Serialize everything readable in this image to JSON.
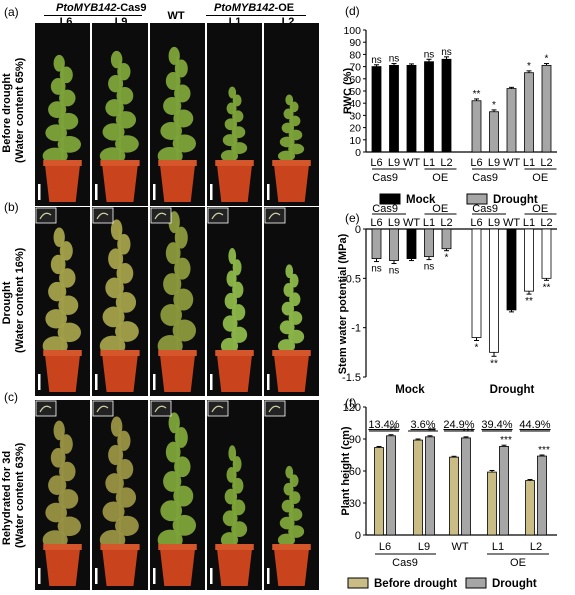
{
  "left": {
    "panel_letters": [
      "(a)",
      "(b)",
      "(c)"
    ],
    "header": {
      "cas9_gene": "PtoMYB142",
      "cas9_suffix": "-Cas9",
      "oe_gene": "PtoMYB142",
      "oe_suffix": "-OE",
      "wt": "WT"
    },
    "columns": [
      "L6",
      "L9",
      "WT",
      "L1",
      "L2"
    ],
    "rows": [
      {
        "line1": "Before drought",
        "line2": "(Water content 65%)"
      },
      {
        "line1": "Drought",
        "line2": "(Water content 16%)"
      },
      {
        "line1": "Rehydrated for 3d",
        "line2": "(Water content 63%)"
      }
    ]
  },
  "colors": {
    "black": "#000000",
    "gray": "#a6a6a6",
    "tan": "#c9bd85",
    "white": "#ffffff",
    "pot": "#c9441c",
    "leaf_healthy": "#7ea53a",
    "leaf_wilted": "#a4a24a"
  },
  "chart_data": [
    {
      "panel": "(d)",
      "type": "bar",
      "ylabel": "RWC (%)",
      "ylim": [
        0,
        100
      ],
      "yticks": [
        0,
        10,
        20,
        30,
        40,
        50,
        60,
        70,
        80,
        90,
        100
      ],
      "categories": [
        "L6",
        "L9",
        "WT",
        "L1",
        "L2"
      ],
      "groups": [
        {
          "name": "Mock",
          "values": [
            70,
            71,
            71,
            74,
            76
          ],
          "errors": [
            1.5,
            1.5,
            1.2,
            2,
            2
          ],
          "marks": [
            "ns",
            "ns",
            "",
            "ns",
            "ns"
          ]
        },
        {
          "name": "Drought",
          "values": [
            42,
            33,
            52,
            65,
            71
          ],
          "errors": [
            1.5,
            1.5,
            1,
            1.5,
            1.5
          ],
          "marks": [
            "**",
            "*",
            "",
            "*",
            "*"
          ]
        }
      ],
      "group_labels": [
        [
          "Cas9",
          "OE"
        ],
        [
          "Cas9",
          "OE"
        ]
      ],
      "legend": [
        "Mock",
        "Drought"
      ]
    },
    {
      "panel": "(e)",
      "type": "bar",
      "ylabel": "Stem water potential (MPa)",
      "ylim": [
        -1.5,
        0
      ],
      "yticks": [
        0,
        -0.5,
        -1,
        -1.5
      ],
      "ytick_labels": [
        "0",
        "-0.5",
        "-1",
        "-1.5"
      ],
      "categories": [
        "L6",
        "L9",
        "WT",
        "L1",
        "L2"
      ],
      "groups": [
        {
          "name": "Mock",
          "values": [
            -0.3,
            -0.32,
            -0.3,
            -0.28,
            -0.2
          ],
          "errors": [
            0.03,
            0.03,
            0.02,
            0.03,
            0.02
          ],
          "marks": [
            "ns",
            "ns",
            "",
            "ns",
            "*"
          ]
        },
        {
          "name": "Drought",
          "values": [
            -1.1,
            -1.25,
            -0.82,
            -0.63,
            -0.5
          ],
          "errors": [
            0.03,
            0.04,
            0.02,
            0.03,
            0.02
          ],
          "marks": [
            "*",
            "**",
            "",
            "**",
            "**"
          ]
        }
      ],
      "group_labels": [
        [
          "Cas9",
          "OE"
        ],
        [
          "Cas9",
          "OE"
        ]
      ],
      "xlabels": [
        "Mock",
        "Drought"
      ]
    },
    {
      "panel": "(f)",
      "type": "bar",
      "ylabel": "Plant height (cm)",
      "ylim": [
        0,
        120
      ],
      "yticks": [
        0,
        30,
        60,
        90,
        120
      ],
      "categories": [
        "L6",
        "L9",
        "WT",
        "L1",
        "L2"
      ],
      "series": [
        {
          "name": "Before drought",
          "values": [
            82,
            89,
            73,
            59,
            51
          ],
          "errors": [
            1,
            1,
            0.8,
            1.5,
            1
          ]
        },
        {
          "name": "Drought",
          "values": [
            93,
            92,
            91,
            83,
            74
          ],
          "errors": [
            1,
            1,
            1,
            1.2,
            1
          ]
        }
      ],
      "marks": [
        "**",
        "**",
        "***",
        "***",
        "***"
      ],
      "percent_labels": [
        "13.4%",
        "3.6%",
        "24.9%",
        "39.4%",
        "44.9%"
      ],
      "group_labels": [
        "Cas9",
        "OE"
      ],
      "legend": [
        "Before drought",
        "Drought"
      ]
    }
  ]
}
